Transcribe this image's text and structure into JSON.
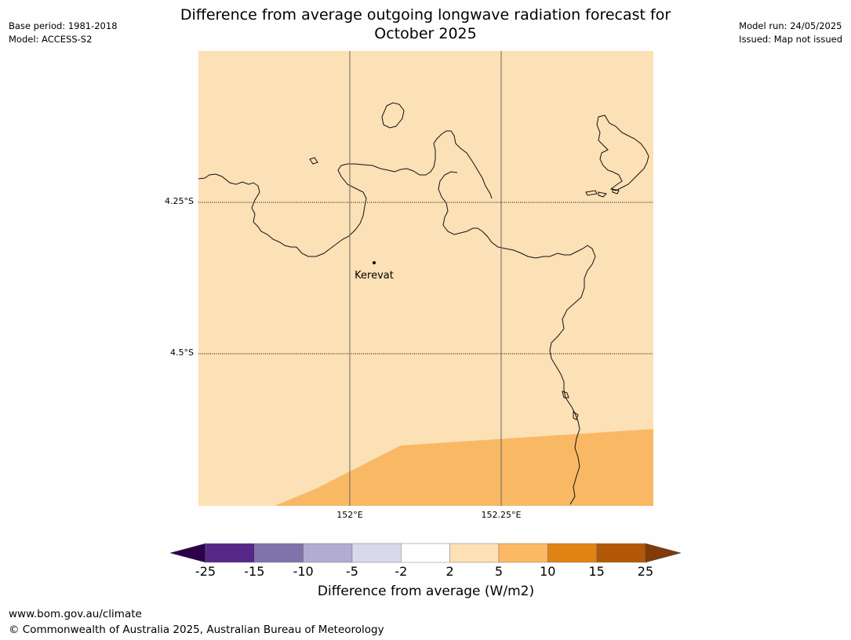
{
  "header": {
    "title_line1": "Difference from average outgoing longwave radiation forecast for",
    "title_line2": "October 2025",
    "base_period": "Base period: 1981-2018",
    "model": "Model: ACCESS-S2",
    "model_run": "Model run: 24/05/2025",
    "issued": "Issued: Map not issued"
  },
  "map": {
    "lat_labels": [
      "4.25°S",
      "4.5°S"
    ],
    "lon_labels": [
      "152°E",
      "152.25°E"
    ],
    "place": {
      "name": "Kerevat"
    },
    "land_outline_color": "#000000",
    "grid_color": "#555555"
  },
  "colorbar": {
    "ticks": [
      "-25",
      "-15",
      "-10",
      "-5",
      "-2",
      "2",
      "5",
      "10",
      "15",
      "25"
    ],
    "colors": [
      "#542788",
      "#8073ac",
      "#b2abd2",
      "#d8daeb",
      "#ffffff",
      "#fee0b6",
      "#fdb863",
      "#e08214",
      "#b35806"
    ],
    "under_color": "#2d004b",
    "over_color": "#7f3b08",
    "label": "Difference from average (W/m2)"
  },
  "footer": {
    "url": "www.bom.gov.au/climate",
    "copyright": "© Commonwealth of Australia 2025, Australian Bureau of Meteorology"
  }
}
